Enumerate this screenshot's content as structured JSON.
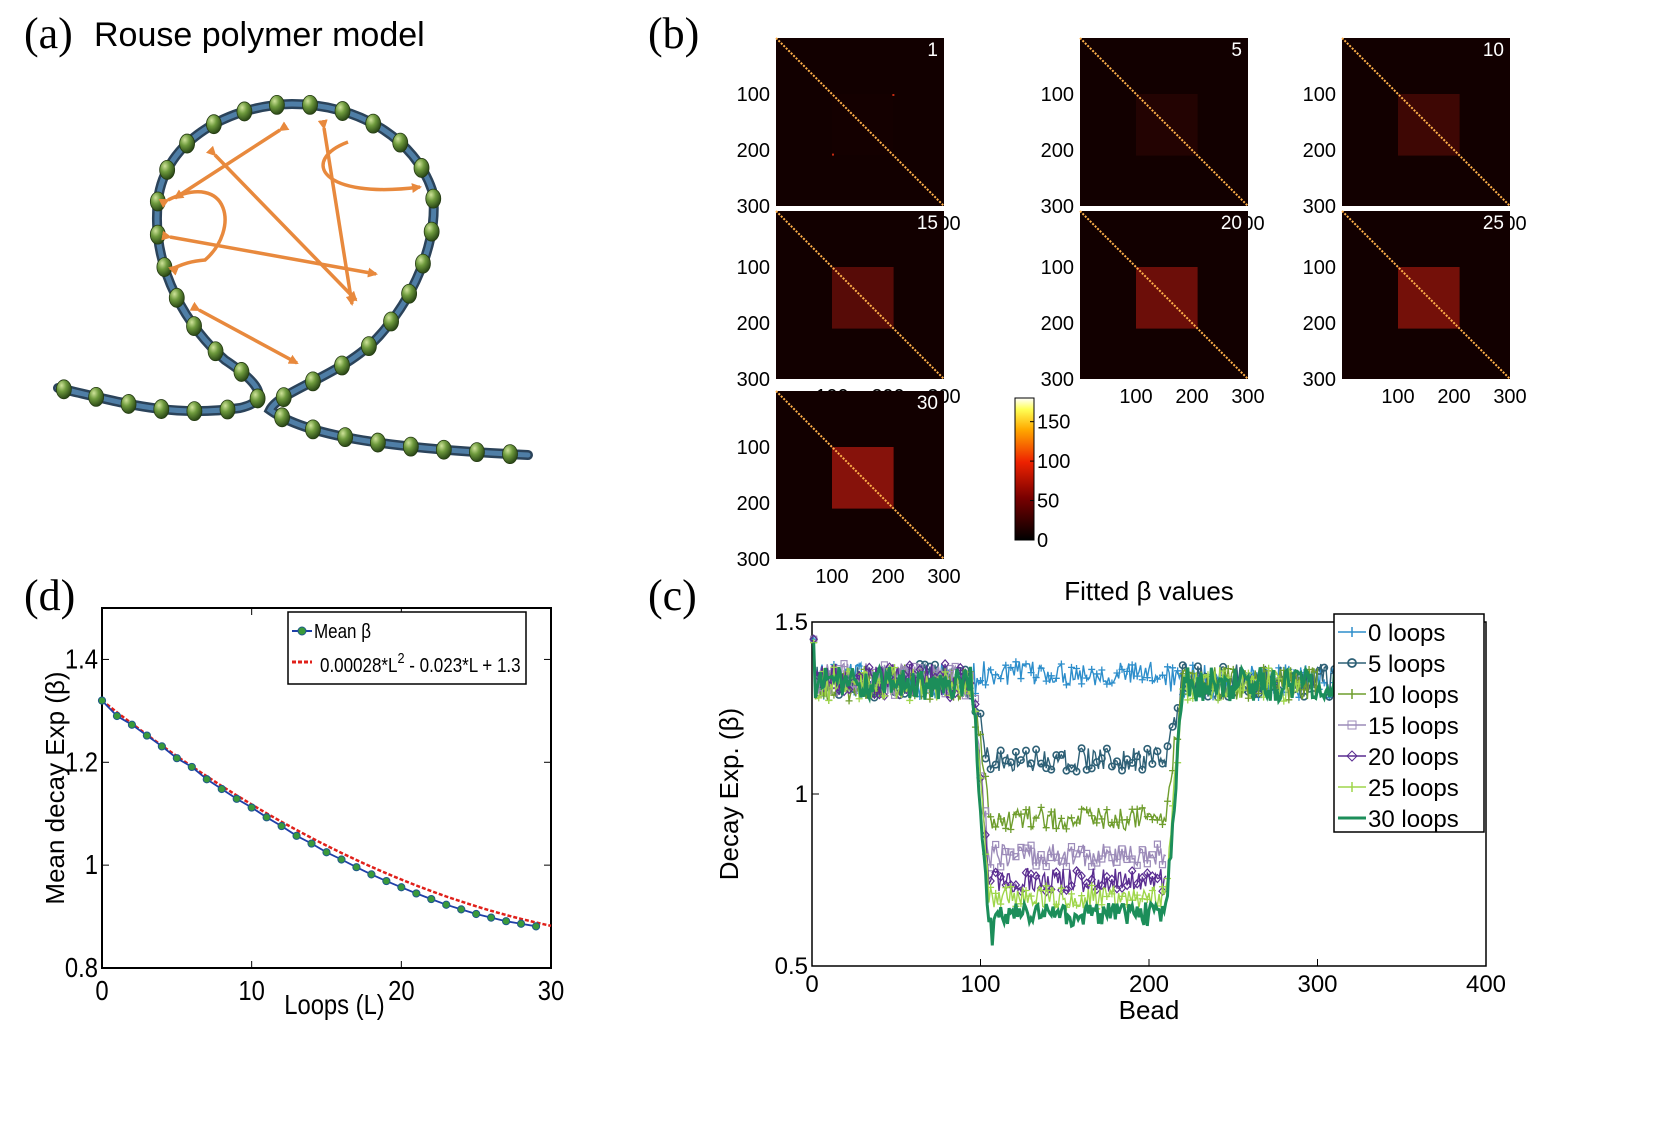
{
  "panels": {
    "a": {
      "letter": "(a)",
      "title": "Rouse polymer model"
    },
    "b": {
      "letter": "(b)"
    },
    "c": {
      "letter": "(c)"
    },
    "d": {
      "letter": "(d)"
    }
  },
  "colors": {
    "bead": "#5f8a3a",
    "backbone": "#3d5f7f",
    "arrow": "#e8893d",
    "hm_bg": "#120000",
    "hm_block": "#a4170e",
    "hm_diag": "#ffb14a",
    "fit_line": "#e0201a",
    "mean_line": "#1f3fa8"
  },
  "chart_data": [
    {
      "panel": "b",
      "type": "heatmap",
      "x_ticks": [
        "100",
        "200",
        "300"
      ],
      "y_ticks": [
        "100",
        "200",
        "300"
      ],
      "range": [
        0,
        300
      ],
      "loop_block": [
        100,
        210
      ],
      "maps": [
        {
          "label": "1",
          "block_intensity": 0.02
        },
        {
          "label": "5",
          "block_intensity": 0.12
        },
        {
          "label": "10",
          "block_intensity": 0.3
        },
        {
          "label": "15",
          "block_intensity": 0.48
        },
        {
          "label": "20",
          "block_intensity": 0.62
        },
        {
          "label": "25",
          "block_intensity": 0.68
        },
        {
          "label": "30",
          "block_intensity": 0.8
        }
      ],
      "colorbar": {
        "range": [
          0,
          180
        ],
        "ticks": [
          "150",
          "100",
          "50",
          "0"
        ]
      }
    },
    {
      "panel": "c",
      "type": "line",
      "title": "Fitted β values",
      "xlabel": "Bead",
      "ylabel": "Decay Exp. (β)",
      "xlim": [
        0,
        400
      ],
      "ylim": [
        0.5,
        1.5
      ],
      "x_ticks": [
        "0",
        "100",
        "200",
        "300",
        "400"
      ],
      "y_ticks": [
        "0.5",
        "1",
        "1.5"
      ],
      "legend_position": "top-right",
      "loop_region": [
        105,
        210
      ],
      "series": [
        {
          "name": "0 loops",
          "color": "#2d8ecb",
          "marker": "plus",
          "outside": 1.33,
          "inside": 1.35,
          "n_beads": 310
        },
        {
          "name": "5 loops",
          "color": "#2e6076",
          "marker": "circle",
          "outside": 1.33,
          "inside": 1.1,
          "n_beads": 310
        },
        {
          "name": "10 loops",
          "color": "#6f9d2d",
          "marker": "star",
          "outside": 1.32,
          "inside": 0.93,
          "n_beads": 300
        },
        {
          "name": "15 loops",
          "color": "#9c8bb9",
          "marker": "square",
          "outside": 1.33,
          "inside": 0.82,
          "n_beads": 210
        },
        {
          "name": "20 loops",
          "color": "#5a2d91",
          "marker": "diamond",
          "outside": 1.33,
          "inside": 0.75,
          "n_beads": 210
        },
        {
          "name": "25 loops",
          "color": "#9fd64b",
          "marker": "star",
          "outside": 1.32,
          "inside": 0.7,
          "n_beads": 290
        },
        {
          "name": "30 loops",
          "color": "#1c8e5a",
          "marker": "none",
          "outside": 1.32,
          "inside": 0.65,
          "n_beads": 310
        }
      ]
    },
    {
      "panel": "d",
      "type": "line",
      "xlabel": "Loops (L)",
      "ylabel": "Mean decay Exp (β)",
      "xlim": [
        0,
        30
      ],
      "ylim": [
        0.8,
        1.5
      ],
      "x_ticks": [
        "0",
        "10",
        "20",
        "30"
      ],
      "y_ticks": [
        "0.8",
        "1",
        "1.2",
        "1.4"
      ],
      "legend_position": "top-right",
      "series": [
        {
          "name": "Mean β",
          "x": [
            0,
            1,
            2,
            3,
            4,
            5,
            6,
            7,
            8,
            9,
            10,
            11,
            12,
            13,
            14,
            15,
            16,
            17,
            18,
            19,
            20,
            21,
            22,
            23,
            24,
            25,
            26,
            27,
            28,
            29
          ],
          "values": [
            1.32,
            1.29,
            1.273,
            1.252,
            1.231,
            1.208,
            1.191,
            1.167,
            1.148,
            1.129,
            1.112,
            1.093,
            1.076,
            1.057,
            1.042,
            1.025,
            1.011,
            0.996,
            0.982,
            0.969,
            0.957,
            0.945,
            0.934,
            0.923,
            0.914,
            0.905,
            0.898,
            0.891,
            0.886,
            0.881
          ]
        },
        {
          "name": "0.00028*L² - 0.023*L + 1.3",
          "formula_parts": [
            "0.00028*L",
            "2",
            " - 0.023*L + 1.3"
          ],
          "coefficients": {
            "a": 0.00028,
            "b": -0.023,
            "c": 1.3
          },
          "fit_start": 1.32,
          "x_range": [
            0,
            30
          ]
        }
      ]
    }
  ]
}
